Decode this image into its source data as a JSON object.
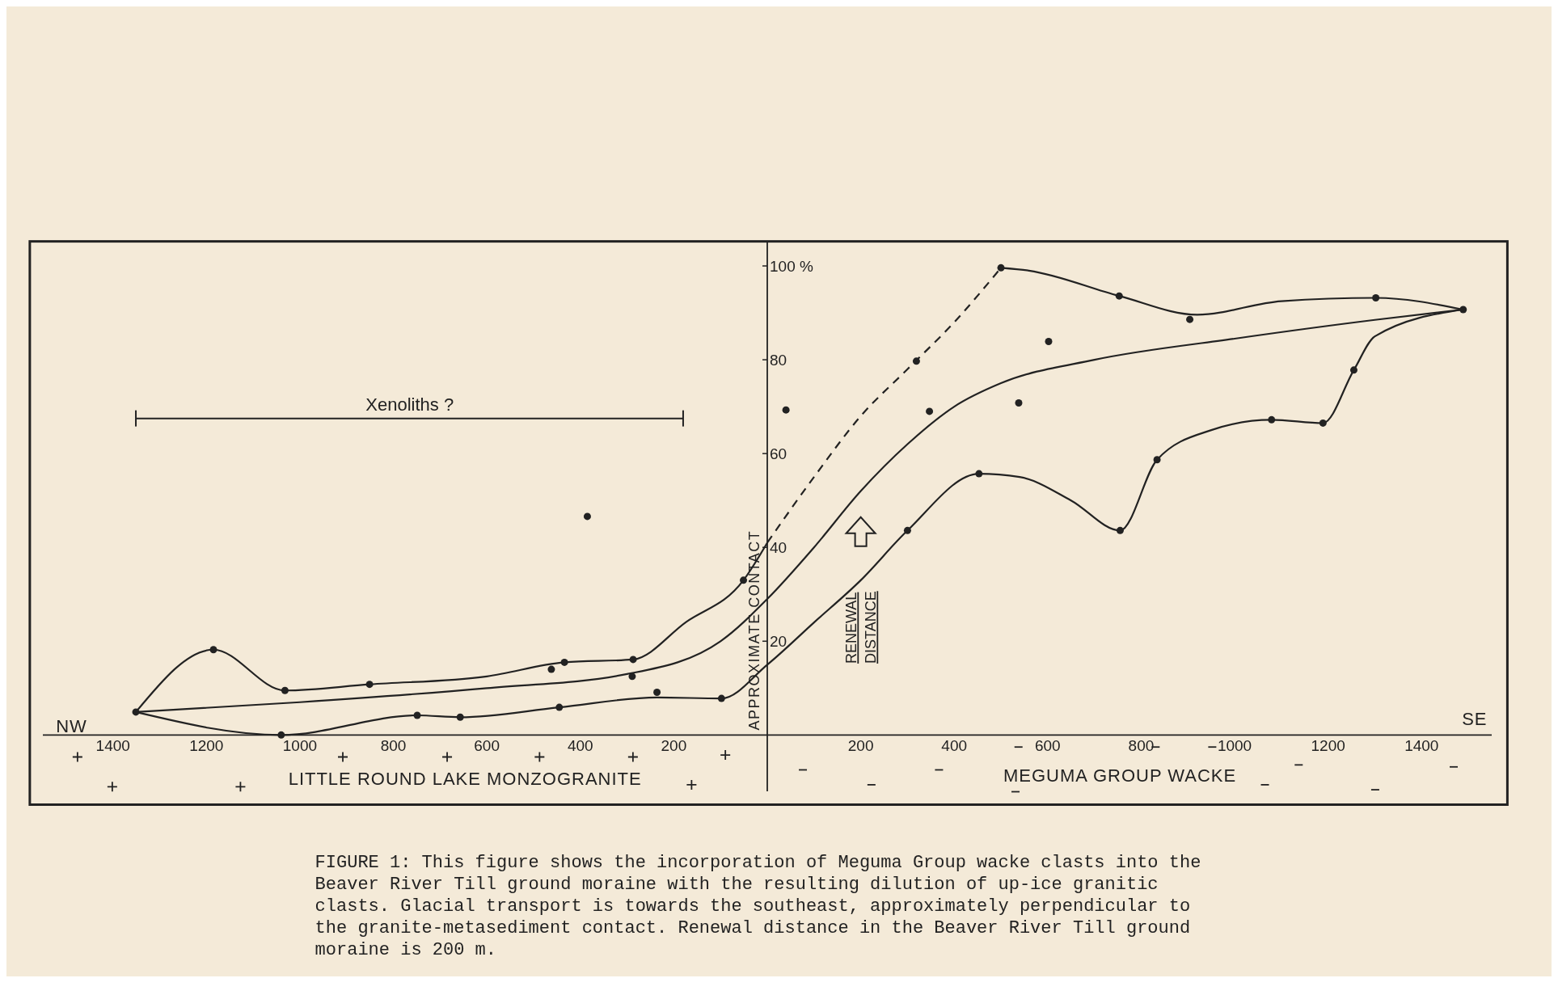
{
  "chart_data": {
    "type": "scatter",
    "xlim": [
      -1550,
      1550
    ],
    "ylim": [
      -12,
      105
    ],
    "xticks": [
      {
        "value": -1400,
        "label": "1400"
      },
      {
        "value": -1200,
        "label": "1200"
      },
      {
        "value": -1000,
        "label": "1000"
      },
      {
        "value": -800,
        "label": "800"
      },
      {
        "value": -600,
        "label": "600"
      },
      {
        "value": -400,
        "label": "400"
      },
      {
        "value": -200,
        "label": "200"
      },
      200,
      400,
      600,
      800,
      1000,
      1200,
      1400
    ],
    "yticks": [
      20,
      40,
      60,
      80,
      {
        "value": 100,
        "label": "100 %"
      }
    ],
    "series": [
      {
        "color": "#222222",
        "marker": "circle",
        "x": [
          -1351,
          -1185,
          -1032,
          -851,
          -1040,
          -749,
          -657,
          -462,
          -434,
          -445,
          -385,
          -287,
          -289,
          -236,
          -98,
          -51,
          40,
          500,
          753,
          904,
          1302,
          1489,
          602,
          538,
          319,
          347,
          453,
          300,
          755,
          834,
          1079,
          1189,
          1255
        ],
        "values": [
          4.9,
          18.2,
          9.5,
          10.8,
          0,
          4.2,
          3.8,
          14,
          15.5,
          5.9,
          46.6,
          16.1,
          12.5,
          9.1,
          7.8,
          33,
          69.3,
          99.6,
          93.6,
          88.6,
          93.2,
          90.7,
          83.9,
          70.8,
          79.7,
          69,
          55.7,
          43.6,
          43.6,
          58.7,
          67.2,
          66.5,
          77.8
        ]
      },
      {
        "type": "line",
        "color": "#222222",
        "line_style": "solid",
        "x": [
          -1351,
          -1185,
          -1032,
          -851,
          -600,
          -434,
          -287,
          -175,
          -51,
          0
        ],
        "values": [
          4.9,
          18.2,
          9.5,
          10.8,
          12.5,
          15.5,
          16.1,
          24,
          33,
          41
        ]
      },
      {
        "type": "line",
        "color": "#222222",
        "line_style": "dashed",
        "x": [
          0,
          100,
          200,
          300,
          400,
          500
        ],
        "values": [
          41,
          55,
          68,
          78,
          88,
          99.6
        ]
      },
      {
        "type": "line",
        "color": "#222222",
        "line_style": "solid",
        "x": [
          500,
          560,
          753,
          920,
          1100,
          1302,
          1489
        ],
        "values": [
          99.6,
          99,
          93.6,
          89.6,
          92.5,
          93.2,
          90.7
        ]
      },
      {
        "type": "line",
        "color": "#222222",
        "line_style": "solid",
        "x": [
          -1351,
          -1000,
          -600,
          -300,
          -100,
          0,
          100,
          200,
          300,
          400,
          500,
          700,
          1000,
          1300,
          1489
        ],
        "values": [
          4.9,
          7,
          10,
          13,
          20,
          29,
          40,
          52,
          62,
          70,
          75,
          80,
          84.5,
          88.5,
          90.7
        ]
      },
      {
        "type": "line",
        "color": "#222222",
        "line_style": "solid",
        "x": [
          -1351,
          -1040,
          -749,
          -657,
          -445,
          -236,
          -98,
          0,
          100,
          200,
          300,
          453,
          540,
          650,
          755,
          834,
          950,
          1079,
          1189,
          1255,
          1300,
          1489
        ],
        "values": [
          4.9,
          0,
          4.2,
          3.8,
          5.9,
          8,
          7.8,
          15,
          24,
          33,
          43.6,
          55.7,
          55,
          50,
          43.6,
          58.7,
          65,
          67.2,
          66.5,
          77.8,
          85,
          90.7
        ]
      }
    ],
    "annotations": [
      "APPROXIMATE CONTACT",
      "NW",
      "SE",
      "Xenoliths ?",
      "LITTLE ROUND LAKE MONZOGRANITE",
      "MEGUMA GROUP WACKE",
      "RENEWAL DISTANCE",
      "FIGURE 1: This figure shows the incorporation of Meguma Group wacke clasts into the Beaver River Till ground moraine with the resulting dilution of up-ice granitic clasts. Glacial transport is towards the southeast, approximately perpendicular to the granite-metasediment contact. Renewal distance in the Beaver River Till ground moraine is 200 m."
    ]
  }
}
